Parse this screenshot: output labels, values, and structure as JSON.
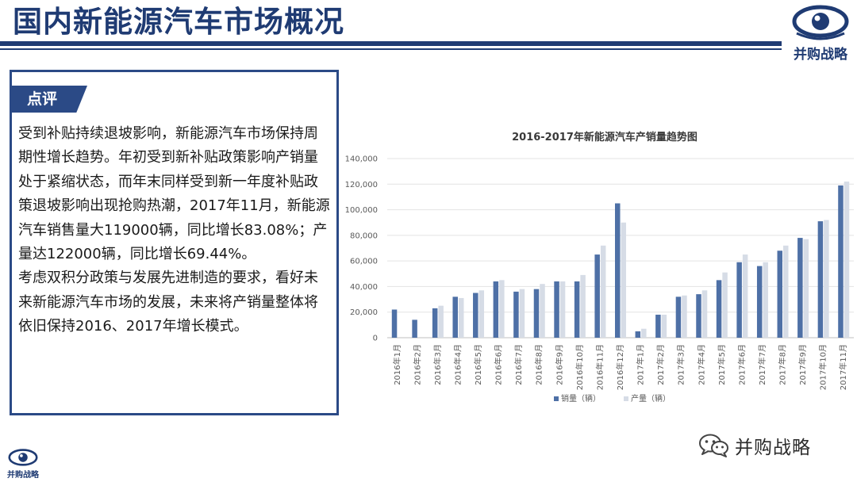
{
  "page": {
    "title": "国内新能源汽车市场概况"
  },
  "brand": {
    "name": "并购战略",
    "logo_icon": "eye-logo-icon",
    "color": "#1f3b73"
  },
  "commentary": {
    "tab_label": "点评",
    "paragraphs": [
      "受到补贴持续退坡影响，新能源汽车市场保持周期性增长趋势。年初受到新补贴政策影响产销量处于紧缩状态，而年末同样受到新一年度补贴政策退坡影响出现抢购热潮，2017年11月，新能源汽车销售量大119000辆，同比增长83.08%；产量达122000辆，同比增长69.44%。",
      "考虑双积分政策与发展先进制造的要求，看好未来新能源汽车市场的发展，未来将产销量整体将依旧保持2016、2017年增长模式。"
    ]
  },
  "footer": {
    "wechat_name": "并购战略",
    "wechat_icon": "wechat-icon"
  },
  "colors": {
    "title": "#1f3b73",
    "frame": "#2b4a86",
    "sales_bar": "#4e70a6",
    "production_bar": "#d6dce6"
  },
  "chart_data": {
    "type": "bar",
    "title": "2016-2017年新能源汽车产销量趋势图",
    "xlabel": "",
    "ylabel": "",
    "ylim": [
      0,
      140000
    ],
    "yticks": [
      0,
      20000,
      40000,
      60000,
      80000,
      100000,
      120000,
      140000
    ],
    "ytick_labels": [
      "0",
      "20,000",
      "40,000",
      "60,000",
      "80,000",
      "100,000",
      "120,000",
      "140,000"
    ],
    "grid": true,
    "legend_position": "bottom",
    "categories": [
      "2016年1月",
      "2016年2月",
      "2016年3月",
      "2016年4月",
      "2016年5月",
      "2016年6月",
      "2016年7月",
      "2016年8月",
      "2016年9月",
      "2016年10月",
      "2016年11月",
      "2016年12月",
      "2017年1月",
      "2017年2月",
      "2017年3月",
      "2017年4月",
      "2017年5月",
      "2017年6月",
      "2017年7月",
      "2017年8月",
      "2017年9月",
      "2017年10月",
      "2017年11月"
    ],
    "series": [
      {
        "name": "销量（辆）",
        "color": "#4e70a6",
        "values": [
          22000,
          14000,
          23000,
          32000,
          35000,
          44000,
          36000,
          38000,
          44000,
          44000,
          65000,
          105000,
          5000,
          18000,
          32000,
          34000,
          45000,
          59000,
          56000,
          68000,
          78000,
          91000,
          119000
        ]
      },
      {
        "name": "产量（辆）",
        "color": "#d6dce6",
        "values": [
          0,
          0,
          25000,
          31000,
          37000,
          45000,
          38000,
          42000,
          44000,
          49000,
          72000,
          90000,
          7000,
          18000,
          33000,
          37000,
          51000,
          65000,
          59000,
          72000,
          77000,
          92000,
          122000
        ]
      }
    ]
  }
}
